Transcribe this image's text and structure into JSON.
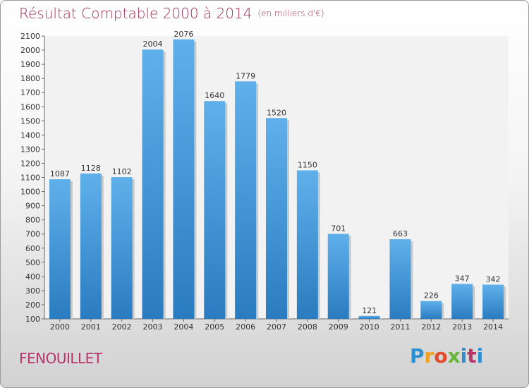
{
  "chart_data": {
    "type": "bar",
    "title": "Résultat Comptable 2000 à 2014",
    "subtitle": "(en milliers d'€)",
    "categories": [
      "2000",
      "2001",
      "2002",
      "2003",
      "2004",
      "2005",
      "2006",
      "2007",
      "2008",
      "2009",
      "2010",
      "2011",
      "2012",
      "2013",
      "2014"
    ],
    "values": [
      1087,
      1128,
      1102,
      2004,
      2076,
      1640,
      1779,
      1520,
      1150,
      701,
      121,
      663,
      226,
      347,
      342
    ],
    "ylim": [
      100,
      2100
    ],
    "yticks": [
      100,
      200,
      300,
      400,
      500,
      600,
      700,
      800,
      900,
      1000,
      1100,
      1200,
      1300,
      1400,
      1500,
      1600,
      1700,
      1800,
      1900,
      2000,
      2100
    ],
    "grid": false,
    "bar_color_top": "#5fb0ea",
    "bar_color_bottom": "#2a7cc0"
  },
  "commune": "FENOUILLET",
  "logo": {
    "letters": [
      "P",
      "r",
      "o",
      "x",
      "i",
      "t",
      "i"
    ]
  }
}
